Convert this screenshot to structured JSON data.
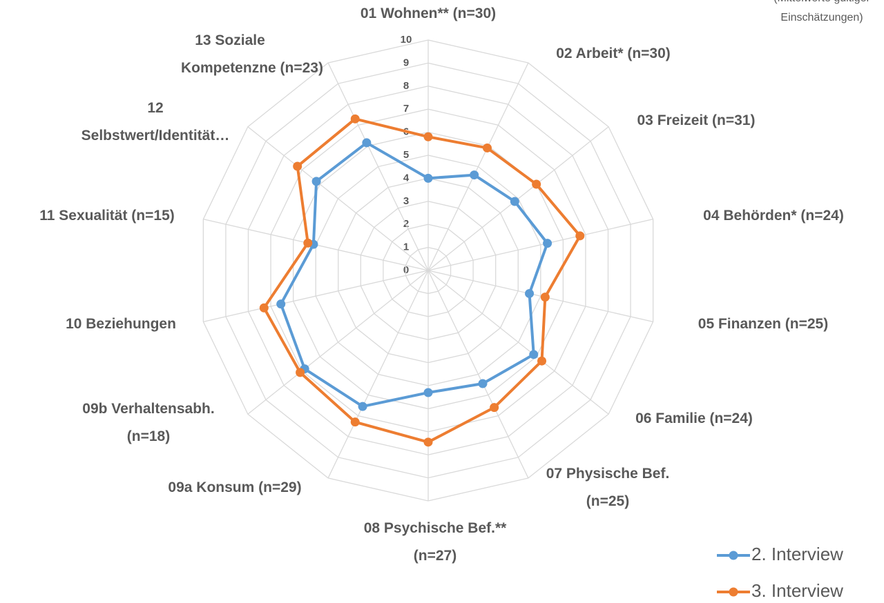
{
  "chart_data": {
    "type": "radar",
    "subtitle": "(Mittelwerte gültiger Einschätzungen)",
    "categories": [
      "01 Wohnen** (n=30)",
      "02 Arbeit* (n=30)",
      "03 Freizeit (n=31)",
      "04 Behörden* (n=24)",
      "05 Finanzen (n=25)",
      "06 Familie (n=24)",
      "07 Physische Bef.\n(n=25)",
      "08 Psychische Bef.**\n(n=27)",
      "09a Konsum (n=29)",
      "09b Verhaltensabh.\n(n=18)",
      "10 Beziehungen",
      "11 Sexualität (n=15)",
      "12\nSelbstwert/Identität…",
      "13 Soziale\nKompetenzne (n=23)"
    ],
    "series": [
      {
        "name": "2. Interview",
        "color": "#5b9bd5",
        "values": [
          4.0,
          4.6,
          4.8,
          5.3,
          4.5,
          5.85,
          5.45,
          5.3,
          6.55,
          6.85,
          6.55,
          5.1,
          6.2,
          6.15
        ]
      },
      {
        "name": "3. Interview",
        "color": "#ed7d31",
        "values": [
          5.8,
          5.9,
          6.0,
          6.75,
          5.2,
          6.3,
          6.6,
          7.45,
          7.3,
          7.1,
          7.3,
          5.35,
          7.25,
          7.3
        ]
      }
    ],
    "rlim": [
      0,
      10
    ],
    "rticks": [
      0,
      1,
      2,
      3,
      4,
      5,
      6,
      7,
      8,
      9,
      10
    ],
    "grid": true,
    "legend": "bottom-right"
  }
}
